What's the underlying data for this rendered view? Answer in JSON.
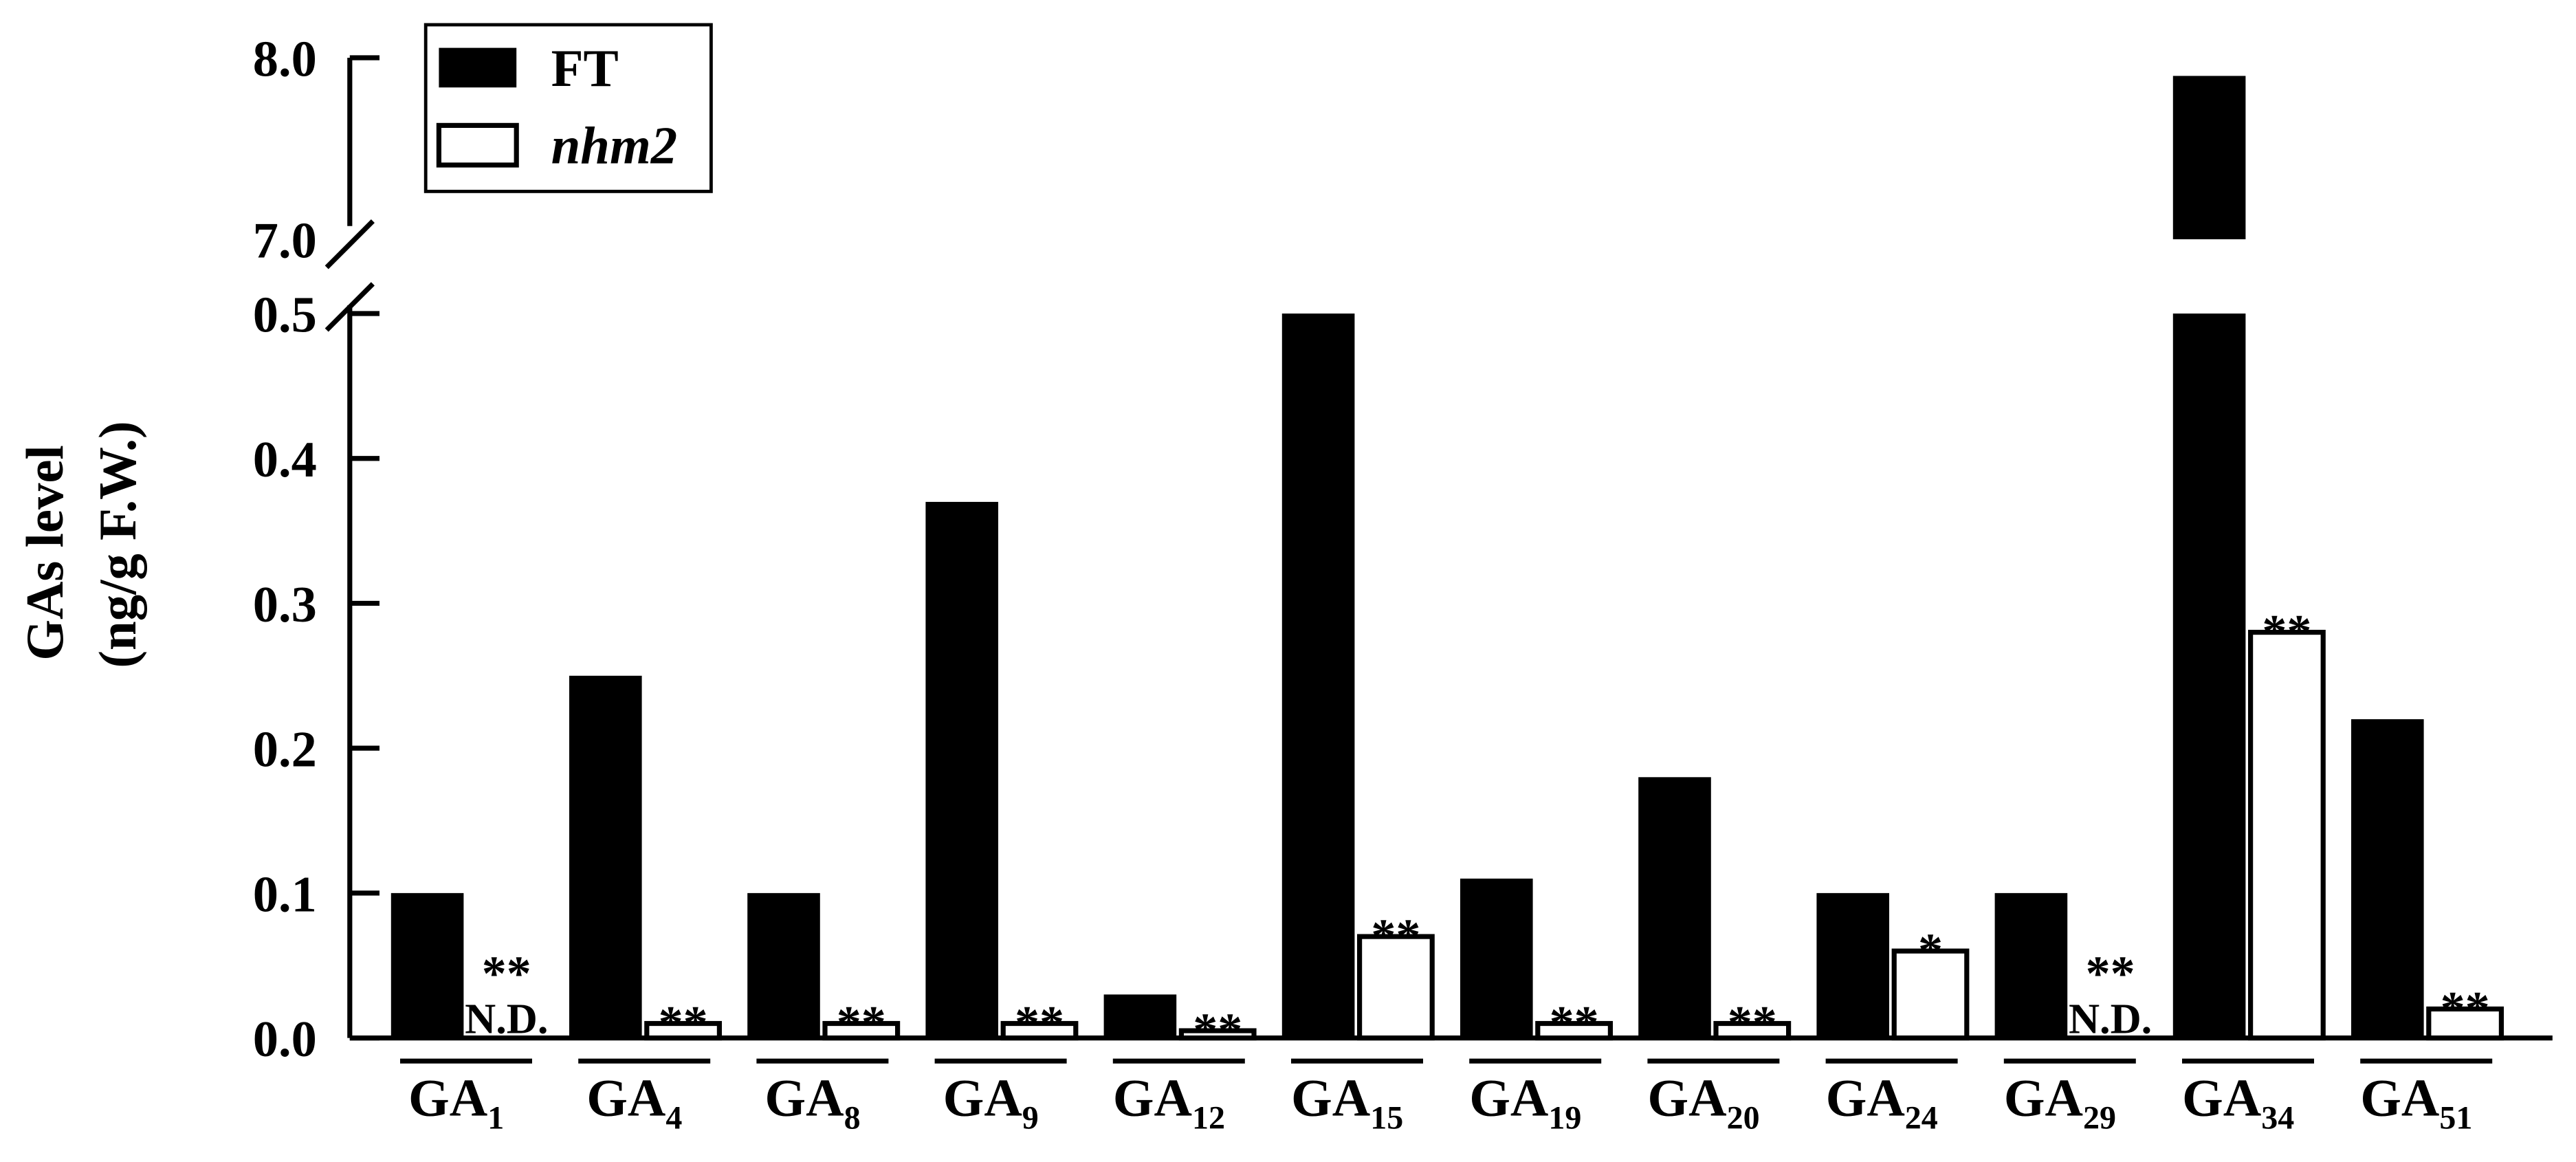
{
  "chart_data": {
    "type": "bar",
    "ylabel": "GAs level",
    "ylabel_unit": "(ng/g F.W.)",
    "y_ticks_lower": [
      "0.0",
      "0.1",
      "0.2",
      "0.3",
      "0.4",
      "0.5"
    ],
    "y_ticks_upper": [
      "7.0",
      "8.0"
    ],
    "ylim_lower": [
      0,
      0.5
    ],
    "ylim_upper": [
      7.0,
      8.0
    ],
    "axis_break": "between 0.5 and 7.0",
    "legend": {
      "position": "top-left",
      "entries": [
        "FT",
        "nhm2"
      ]
    },
    "categories": [
      {
        "base": "GA",
        "sub": "1"
      },
      {
        "base": "GA",
        "sub": "4"
      },
      {
        "base": "GA",
        "sub": "8"
      },
      {
        "base": "GA",
        "sub": "9"
      },
      {
        "base": "GA",
        "sub": "12"
      },
      {
        "base": "GA",
        "sub": "15"
      },
      {
        "base": "GA",
        "sub": "19"
      },
      {
        "base": "GA",
        "sub": "20"
      },
      {
        "base": "GA",
        "sub": "24"
      },
      {
        "base": "GA",
        "sub": "29"
      },
      {
        "base": "GA",
        "sub": "34"
      },
      {
        "base": "GA",
        "sub": "51"
      }
    ],
    "series": [
      {
        "name": "FT",
        "fill": "#000000",
        "values": [
          0.1,
          0.25,
          0.1,
          0.37,
          0.03,
          0.5,
          0.11,
          0.18,
          0.1,
          0.1,
          7.9,
          0.22
        ]
      },
      {
        "name": "nhm2",
        "fill": "#ffffff",
        "values": [
          0,
          0.01,
          0.01,
          0.01,
          0.005,
          0.07,
          0.01,
          0.01,
          0.06,
          0,
          0.28,
          0.02
        ]
      }
    ],
    "annotations": [
      "** N.D.",
      "**",
      "**",
      "**",
      "**",
      "**",
      "**",
      "**",
      "*",
      "** N.D.",
      "**",
      "**"
    ]
  }
}
